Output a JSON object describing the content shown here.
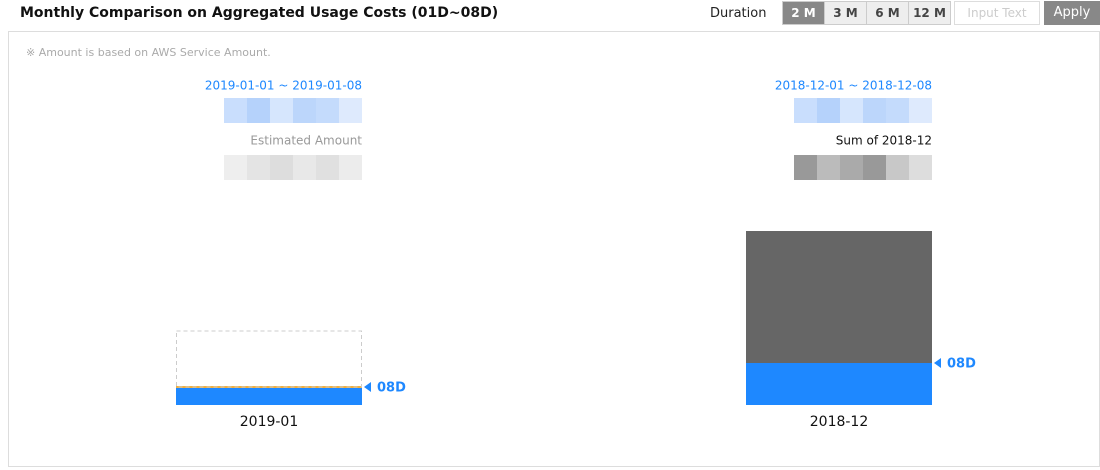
{
  "header": {
    "title": "Monthly Comparison on Aggregated Usage Costs (01D~08D)",
    "duration_label": "Duration",
    "buttons": [
      "2 M",
      "3 M",
      "6 M",
      "12 M"
    ],
    "active_button": 0,
    "input_placeholder": "Input Text",
    "apply": "Apply"
  },
  "note": "※ Amount is based on AWS Service Amount.",
  "chart_data": {
    "type": "bar",
    "categories": [
      "2019-01",
      "2018-12"
    ],
    "ranges": [
      "2019-01-01 ~ 2019-01-08",
      "2018-12-01 ~ 2018-12-08"
    ],
    "amount_labels": [
      "Estimated Amount",
      "Sum of 2018-12"
    ],
    "estimated": [
      true,
      false
    ],
    "series": [
      {
        "name": "08D",
        "color": "#1e88ff",
        "values": [
          18,
          42
        ]
      },
      {
        "color": "#666666",
        "values": [
          56,
          132
        ]
      }
    ]
  }
}
